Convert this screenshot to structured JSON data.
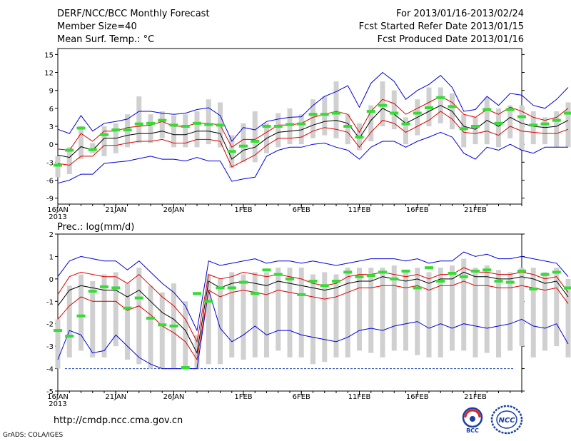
{
  "header": {
    "title": "DERF/NCC/BCC Monthly Forecast",
    "member_size": "Member Size=40",
    "variable": "Mean Surf. Temp.: °C",
    "period": "For 2013/01/16-2013/02/24",
    "start_date": "Fcst Started Refer Date 2013/01/15",
    "produced_date": "Fcst Produced Date 2013/01/16"
  },
  "footer": {
    "url": "http://cmdp.ncc.cma.gov.cn",
    "credit": "GrADS: COLA/IGES",
    "logo_left_text": "BCC",
    "logo_right_text": "NCC"
  },
  "colors": {
    "max_min": "#0000dd",
    "spread": "#dd0000",
    "mean": "#000000",
    "median": "#33dd33",
    "box": "#d0d0d0"
  },
  "chart_data": [
    {
      "type": "line",
      "title": "Mean Surf. Temp.: °C",
      "ylabel": "°C",
      "ylim": [
        -10,
        16
      ],
      "yticks": [
        15,
        12,
        9,
        6,
        3,
        0,
        -3,
        -6,
        -9
      ],
      "xlim": [
        16,
        56
      ],
      "x_start_day": 16,
      "x_tick_labels": [
        {
          "day": 16,
          "label": "16JAN",
          "sub": "2013"
        },
        {
          "day": 21,
          "label": "21JAN"
        },
        {
          "day": 26,
          "label": "26JAN"
        },
        {
          "day": 32,
          "label": "1FEB"
        },
        {
          "day": 37,
          "label": "6FEB"
        },
        {
          "day": 42,
          "label": "11FEB"
        },
        {
          "day": 47,
          "label": "16FEB"
        },
        {
          "day": 52,
          "label": "21FEB"
        }
      ],
      "series": [
        {
          "name": "max",
          "values": [
            2.5,
            1.8,
            4.8,
            2.2,
            3.5,
            3.8,
            4.2,
            5.5,
            5.5,
            5.2,
            5,
            5.2,
            5.8,
            6.1,
            4.8,
            0.5,
            2.8,
            2.4,
            3.8,
            4.2,
            4.5,
            4.6,
            6.5,
            8,
            8.8,
            9.8,
            6.2,
            10.2,
            12,
            10.5,
            7.5,
            9,
            10,
            11.5,
            9.5,
            5.5,
            5.8,
            8,
            6.5,
            8.5,
            8.2,
            6.5,
            6,
            7.5,
            9.5
          ]
        },
        {
          "name": "mean_plus_sd",
          "values": [
            -0.8,
            -1,
            1.8,
            0.5,
            2.2,
            2.2,
            2.8,
            3,
            3.2,
            3.8,
            3,
            3,
            3.5,
            3.5,
            3.2,
            -0.5,
            0.8,
            0.8,
            2,
            3.2,
            3.2,
            3.5,
            4.5,
            5,
            5.5,
            5,
            2,
            5.5,
            7.5,
            6.8,
            5,
            6,
            7,
            8,
            7,
            5,
            4.5,
            5.8,
            5,
            6.2,
            5.5,
            4.5,
            4,
            4.5,
            6
          ]
        },
        {
          "name": "mean",
          "values": [
            -1.8,
            -2.2,
            -0.4,
            -1,
            1,
            1,
            1.5,
            1.8,
            1.8,
            2.2,
            1.6,
            1.6,
            2.2,
            2.2,
            1.8,
            -2.5,
            -1,
            -0.5,
            1,
            2,
            2.2,
            2.4,
            3.2,
            3.8,
            4,
            3.5,
            1,
            4,
            6,
            5,
            3.5,
            4.5,
            5.5,
            6.5,
            5.5,
            3,
            2.5,
            4,
            3,
            4.5,
            3.5,
            3,
            2.8,
            3,
            4
          ]
        },
        {
          "name": "mean_minus_sd",
          "values": [
            -3.2,
            -3.5,
            -2,
            -2,
            -0.2,
            -0.2,
            0.2,
            0.5,
            0.5,
            0.8,
            0.2,
            0.2,
            0.8,
            0.8,
            0.5,
            -3.8,
            -2.8,
            -1.8,
            -0.2,
            1,
            1,
            1.2,
            2.2,
            2.8,
            2.5,
            2,
            -0.5,
            2,
            4,
            3.5,
            2,
            3,
            4,
            5.5,
            4.2,
            2,
            1.8,
            2.2,
            1.5,
            3,
            2.2,
            2,
            1.8,
            1.8,
            2.5
          ]
        },
        {
          "name": "min",
          "values": [
            -6.5,
            -6,
            -5,
            -5,
            -3.2,
            -3,
            -2.8,
            -2.4,
            -2,
            -2.5,
            -2.5,
            -2.8,
            -2.2,
            -2.8,
            -2.8,
            -6.2,
            -5.8,
            -5.5,
            -2,
            -1,
            -0.5,
            -0.5,
            0,
            0.2,
            -0.5,
            -1,
            -2.5,
            -0.5,
            0.5,
            0.5,
            -0.5,
            0.5,
            1.2,
            2,
            1.2,
            -1.5,
            -2.5,
            -0.5,
            -1,
            0,
            -1,
            -1.5,
            -0.5,
            -0.5,
            -0.5
          ]
        },
        {
          "name": "median",
          "values": [
            -3.5,
            -1,
            2.7,
            -0.9,
            1.6,
            2.4,
            2.4,
            3.4,
            3.5,
            4,
            3.2,
            3,
            3.5,
            3.3,
            3.2,
            -1.2,
            -0.3,
            0.5,
            3,
            3,
            3.3,
            3.4,
            5,
            5,
            5.2,
            3,
            1.2,
            5.5,
            6.5,
            5.2,
            3.4,
            5.2,
            6.1,
            7.8,
            6.3,
            2.6,
            3,
            5.8,
            3.5,
            5.8,
            4.6,
            3.2,
            3.4,
            4,
            5.2
          ]
        },
        {
          "name": "box_top",
          "values": [
            -2,
            -0.5,
            3,
            0.2,
            3,
            3.5,
            5,
            8,
            5,
            5.5,
            4.8,
            5,
            5.5,
            7.5,
            7,
            1.5,
            3.5,
            5.5,
            3.5,
            5.2,
            6,
            5,
            7.5,
            8,
            10.5,
            5,
            3.5,
            6.5,
            10.5,
            9,
            4.5,
            7.5,
            9.5,
            9.5,
            8.5,
            5,
            4.5,
            7.8,
            6,
            6.5,
            6.5,
            5.5,
            4.5,
            5.5,
            7
          ]
        },
        {
          "name": "box_bottom",
          "values": [
            -5.5,
            -5,
            -2.5,
            -1.5,
            -2,
            -1.5,
            -0.5,
            0.2,
            0.2,
            1,
            -0.5,
            -0.5,
            -0.5,
            0,
            -0.5,
            -4,
            -3,
            -3,
            -1.5,
            -0.5,
            0,
            0,
            1,
            1.5,
            1,
            0,
            -1,
            0.5,
            3,
            2.5,
            0,
            1.5,
            3,
            3.5,
            2.5,
            -0.5,
            0,
            0,
            -0.5,
            1,
            -1,
            0,
            0,
            -0.5,
            -0.5
          ]
        }
      ]
    },
    {
      "type": "line",
      "title": "Prec.: log(mm/d)",
      "ylabel": "log(mm/d)",
      "ylim": [
        -5,
        2
      ],
      "yticks": [
        2,
        1,
        0,
        -1,
        -2,
        -3,
        -4,
        -5
      ],
      "xlim": [
        16,
        56
      ],
      "x_start_day": 16,
      "x_tick_labels": [
        {
          "day": 16,
          "label": "16JAN",
          "sub": "2013"
        },
        {
          "day": 21,
          "label": "21JAN"
        },
        {
          "day": 26,
          "label": "26JAN"
        },
        {
          "day": 32,
          "label": "1FEB"
        },
        {
          "day": 37,
          "label": "6FEB"
        },
        {
          "day": 42,
          "label": "11FEB"
        },
        {
          "day": 47,
          "label": "16FEB"
        },
        {
          "day": 52,
          "label": "21FEB"
        }
      ],
      "baseline": -4,
      "series": [
        {
          "name": "max",
          "values": [
            0.1,
            0.8,
            1,
            0.9,
            0.8,
            0.8,
            0.4,
            0.8,
            0.3,
            -0.2,
            -0.6,
            -1.2,
            -2.3,
            0.8,
            0.6,
            0.7,
            0.8,
            0.9,
            0.7,
            0.8,
            0.8,
            0.7,
            0.8,
            0.7,
            0.6,
            0.7,
            0.8,
            0.9,
            0.9,
            0.9,
            0.8,
            0.9,
            0.7,
            0.8,
            0.8,
            1.2,
            1,
            1.1,
            0.9,
            0.9,
            1,
            0.9,
            0.8,
            0.7,
            0.1
          ]
        },
        {
          "name": "mean_plus_sd",
          "values": [
            -0.7,
            0.1,
            0.3,
            0.2,
            0.1,
            0.1,
            -0.2,
            0.2,
            -0.3,
            -0.8,
            -1.2,
            -1.8,
            -2.8,
            0.2,
            0,
            0.1,
            0.3,
            0.2,
            0.1,
            0.2,
            0.1,
            0,
            -0.2,
            -0.3,
            -0.2,
            0.1,
            0.2,
            0.2,
            0.3,
            0.2,
            0.1,
            0.2,
            0,
            0.2,
            0.2,
            0.5,
            0.3,
            0.3,
            0.2,
            0.2,
            0.3,
            0.2,
            0,
            0.1,
            -0.6
          ]
        },
        {
          "name": "mean",
          "values": [
            -1.2,
            -0.5,
            -0.3,
            -0.4,
            -0.5,
            -0.5,
            -0.8,
            -0.5,
            -1,
            -1.5,
            -1.8,
            -2.3,
            -3.3,
            -0.1,
            -0.4,
            -0.2,
            -0.1,
            -0.2,
            -0.3,
            -0.1,
            -0.2,
            -0.3,
            -0.4,
            -0.5,
            -0.4,
            -0.2,
            -0.1,
            -0.1,
            0.1,
            0,
            -0.1,
            0,
            -0.2,
            0,
            0,
            0.3,
            0.1,
            0.1,
            0,
            0,
            0.1,
            0,
            -0.2,
            -0.1,
            -0.8
          ]
        },
        {
          "name": "mean_minus_sd",
          "values": [
            -1.8,
            -1.2,
            -0.8,
            -1,
            -1,
            -1,
            -1.4,
            -1.2,
            -1.6,
            -2.1,
            -2.4,
            -2.8,
            -3.6,
            -0.5,
            -0.8,
            -0.6,
            -0.5,
            -0.6,
            -0.7,
            -0.5,
            -0.6,
            -0.7,
            -0.8,
            -0.9,
            -0.8,
            -0.6,
            -0.4,
            -0.4,
            -0.3,
            -0.3,
            -0.4,
            -0.3,
            -0.5,
            -0.3,
            -0.3,
            -0.1,
            -0.3,
            -0.3,
            -0.4,
            -0.4,
            -0.3,
            -0.4,
            -0.5,
            -0.4,
            -1.1
          ]
        },
        {
          "name": "min",
          "values": [
            -3.6,
            -2.3,
            -2.5,
            -3.3,
            -3.2,
            -2.5,
            -3,
            -3.5,
            -3.8,
            -4,
            -4,
            -4,
            -4,
            -0.5,
            -2.2,
            -2.8,
            -2.5,
            -2.1,
            -2.5,
            -2.3,
            -2.3,
            -2.5,
            -2.6,
            -2.7,
            -2.8,
            -2.6,
            -2.3,
            -2.2,
            -2.3,
            -2.1,
            -2,
            -1.9,
            -2.2,
            -2,
            -2.2,
            -2,
            -2.1,
            -2.2,
            -2.1,
            -2,
            -1.8,
            -2.1,
            -2.2,
            -2,
            -2.9
          ]
        },
        {
          "name": "median",
          "values": [
            -2.3,
            -2.55,
            -1.65,
            -0.55,
            -0.35,
            -0.4,
            -1.3,
            -0.85,
            -1.75,
            -2.05,
            -2.1,
            -3.95,
            -0.65,
            -1,
            -0.4,
            -0.4,
            -0.15,
            -0.65,
            0.4,
            0.2,
            0,
            -0.7,
            -0.1,
            -0.3,
            -0.1,
            0.3,
            0.1,
            0.15,
            0.3,
            0,
            0.35,
            -0.4,
            0.5,
            -0.1,
            0.25,
            0.1,
            0.35,
            0.4,
            -0.1,
            -0.15,
            0.35,
            -0.45,
            0.2,
            0.3,
            -0.4
          ]
        },
        {
          "name": "box_top",
          "values": [
            -1.8,
            -0.3,
            0.2,
            -0.1,
            0.2,
            0.3,
            -0.2,
            0.5,
            -0.3,
            -0.6,
            -0.2,
            -1,
            -2.5,
            0.2,
            0,
            0.3,
            0.2,
            0.3,
            0.3,
            0.5,
            0.5,
            0.5,
            0.2,
            0.3,
            0.2,
            0.5,
            0.5,
            0.5,
            0.5,
            0.6,
            0.4,
            0.5,
            0.3,
            0.5,
            0.6,
            0.9,
            0.5,
            0.6,
            0.4,
            0.3,
            0.5,
            0.5,
            0.3,
            0.5,
            0
          ]
        },
        {
          "name": "box_bottom",
          "values": [
            -4,
            -3.5,
            -3.2,
            -3.5,
            -3.5,
            -3,
            -3.6,
            -3.8,
            -4,
            -4,
            -4,
            -4,
            -4,
            -3.8,
            -3.8,
            -3.5,
            -3.6,
            -3.5,
            -3.5,
            -3.2,
            -3.5,
            -3.5,
            -3.8,
            -3.7,
            -3.5,
            -3.5,
            -3.2,
            -3.3,
            -3.5,
            -3.2,
            -3.2,
            -3.4,
            -3.5,
            -3.5,
            -3.2,
            -3.2,
            -3.5,
            -3.3,
            -3.5,
            -3.2,
            -3,
            -3.5,
            -3.2,
            -3,
            -3.5
          ]
        }
      ]
    }
  ]
}
